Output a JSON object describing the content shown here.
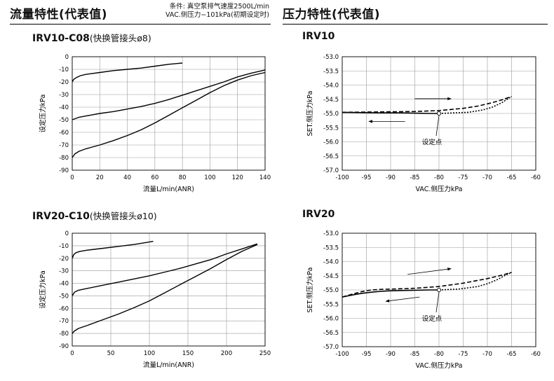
{
  "left_section": {
    "title": "流量特性(代表值)",
    "condition_line1": "条件: 真空泵排气速度2500L/min",
    "condition_line2": "VAC.侧压力−101kPa(初期设定时)"
  },
  "right_section": {
    "title": "压力特性(代表值)"
  },
  "chart_data": [
    {
      "id": "irv10-c08-flow",
      "type": "line",
      "model": "IRV10-C08",
      "model_note": "(快换管接头ø8)",
      "xlabel": "流量L/min(ANR)",
      "ylabel": "设定压力kPa",
      "xlim": [
        0,
        140
      ],
      "ylim": [
        -90,
        0
      ],
      "xticks": [
        0,
        20,
        40,
        60,
        80,
        100,
        120,
        140
      ],
      "yticks": [
        0,
        -10,
        -20,
        -30,
        -40,
        -50,
        -60,
        -70,
        -80,
        -90
      ],
      "grid": true,
      "series": [
        {
          "x": [
            0,
            1,
            3,
            6,
            10,
            20,
            30,
            40,
            50,
            60,
            70,
            80
          ],
          "y": [
            -20,
            -18,
            -16.5,
            -15,
            -14,
            -12.5,
            -11,
            -10,
            -9,
            -7.5,
            -6,
            -5
          ]
        },
        {
          "x": [
            0,
            5,
            10,
            20,
            30,
            40,
            50,
            60,
            70,
            80,
            90,
            100,
            110,
            120,
            130,
            140
          ],
          "y": [
            -50,
            -48,
            -47,
            -45,
            -43.5,
            -41.5,
            -39.5,
            -37,
            -34,
            -30.5,
            -27,
            -23.5,
            -20,
            -16,
            -13,
            -10.5
          ]
        },
        {
          "x": [
            0,
            2,
            5,
            10,
            20,
            30,
            40,
            50,
            60,
            70,
            80,
            90,
            100,
            110,
            120,
            130,
            140
          ],
          "y": [
            -80,
            -77,
            -75,
            -73,
            -70,
            -66.5,
            -62.5,
            -58,
            -52.5,
            -46.5,
            -40.5,
            -34.5,
            -28.5,
            -23,
            -18.5,
            -15,
            -12.5
          ]
        }
      ]
    },
    {
      "id": "irv20-c10-flow",
      "type": "line",
      "model": "IRV20-C10",
      "model_note": "(快换管接头ø10)",
      "xlabel": "流量L/min(ANR)",
      "ylabel": "设定压力kPa",
      "xlim": [
        0,
        250
      ],
      "ylim": [
        -90,
        0
      ],
      "xticks": [
        0,
        50,
        100,
        150,
        200,
        250
      ],
      "yticks": [
        0,
        -10,
        -20,
        -30,
        -40,
        -50,
        -60,
        -70,
        -80,
        -90
      ],
      "grid": true,
      "series": [
        {
          "x": [
            0,
            2,
            5,
            10,
            20,
            40,
            60,
            80,
            95,
            105
          ],
          "y": [
            -20,
            -17,
            -15.5,
            -14.5,
            -13.5,
            -12,
            -10.5,
            -9,
            -7.5,
            -6.5
          ]
        },
        {
          "x": [
            0,
            3,
            8,
            20,
            40,
            60,
            80,
            100,
            120,
            140,
            160,
            180,
            200,
            220,
            240
          ],
          "y": [
            -50,
            -47,
            -45.5,
            -44,
            -41.5,
            -39,
            -36.5,
            -34,
            -31,
            -28,
            -24.5,
            -21,
            -16.5,
            -12.5,
            -8.5
          ]
        },
        {
          "x": [
            0,
            3,
            8,
            20,
            40,
            60,
            80,
            100,
            120,
            140,
            160,
            180,
            200,
            220,
            240
          ],
          "y": [
            -80,
            -78,
            -76,
            -73.5,
            -69,
            -64.5,
            -59.5,
            -54,
            -47.5,
            -41,
            -34.5,
            -28,
            -21,
            -14.5,
            -9
          ]
        }
      ]
    },
    {
      "id": "irv10-pressure",
      "type": "line",
      "model": "IRV10",
      "xlabel": "VAC.侧压力kPa",
      "ylabel": "SET.侧压力kPa",
      "xlim": [
        -100,
        -60
      ],
      "ylim": [
        -57,
        -53
      ],
      "xticks": [
        -100,
        -95,
        -90,
        -85,
        -80,
        -75,
        -70,
        -65,
        -60
      ],
      "yticks": [
        -53.0,
        -53.5,
        -54.0,
        -54.5,
        -55.0,
        -55.5,
        -56.0,
        -56.5,
        -57.0
      ],
      "grid": true,
      "annotation": "设定点",
      "setpoint": {
        "x": -80,
        "y": -55.0
      },
      "series": [
        {
          "style": "solid",
          "x": [
            -100,
            -96,
            -92,
            -88,
            -85,
            -82,
            -80
          ],
          "y": [
            -54.96,
            -54.97,
            -54.98,
            -54.98,
            -54.99,
            -55.0,
            -55.0
          ]
        },
        {
          "style": "dashed",
          "x": [
            -100,
            -95,
            -90,
            -85,
            -80,
            -75,
            -72,
            -69,
            -67,
            -65
          ],
          "y": [
            -54.96,
            -54.95,
            -54.94,
            -54.93,
            -54.9,
            -54.82,
            -54.74,
            -54.62,
            -54.52,
            -54.4
          ]
        },
        {
          "style": "dotted",
          "x": [
            -80,
            -77,
            -74,
            -71,
            -69,
            -67,
            -65
          ],
          "y": [
            -55.0,
            -54.98,
            -54.96,
            -54.88,
            -54.78,
            -54.62,
            -54.4
          ]
        }
      ],
      "arrows": [
        {
          "direction": "right",
          "from": [
            -85,
            -54.48
          ],
          "to": [
            -77.5,
            -54.48
          ]
        },
        {
          "direction": "left",
          "from": [
            -87,
            -55.28
          ],
          "to": [
            -94.5,
            -55.28
          ]
        }
      ]
    },
    {
      "id": "irv20-pressure",
      "type": "line",
      "model": "IRV20",
      "xlabel": "VAC.侧压力kPa",
      "ylabel": "SET.侧压力kPa",
      "xlim": [
        -100,
        -60
      ],
      "ylim": [
        -57,
        -53
      ],
      "xticks": [
        -100,
        -95,
        -90,
        -85,
        -80,
        -75,
        -70,
        -65,
        -60
      ],
      "yticks": [
        -53.0,
        -53.5,
        -54.0,
        -54.5,
        -55.0,
        -55.5,
        -56.0,
        -56.5,
        -57.0
      ],
      "grid": true,
      "annotation": "设定点",
      "setpoint": {
        "x": -80,
        "y": -55.0
      },
      "series": [
        {
          "style": "solid",
          "x": [
            -100,
            -98,
            -96,
            -94,
            -92,
            -90,
            -88,
            -85,
            -82,
            -80
          ],
          "y": [
            -55.25,
            -55.18,
            -55.12,
            -55.08,
            -55.05,
            -55.03,
            -55.02,
            -55.01,
            -55.0,
            -55.0
          ]
        },
        {
          "style": "dashed",
          "x": [
            -100,
            -98,
            -96,
            -94,
            -92,
            -90,
            -85,
            -80,
            -75,
            -70,
            -67,
            -65
          ],
          "y": [
            -55.25,
            -55.15,
            -55.06,
            -55.0,
            -54.98,
            -54.97,
            -54.94,
            -54.88,
            -54.76,
            -54.6,
            -54.48,
            -54.38
          ]
        },
        {
          "style": "dotted",
          "x": [
            -80,
            -76,
            -72,
            -70,
            -68,
            -66.5,
            -65
          ],
          "y": [
            -55.0,
            -54.97,
            -54.88,
            -54.78,
            -54.64,
            -54.5,
            -54.38
          ]
        }
      ],
      "arrows": [
        {
          "direction": "right",
          "from": [
            -86.5,
            -54.45
          ],
          "to": [
            -77.5,
            -54.25
          ]
        },
        {
          "direction": "left",
          "from": [
            -84,
            -55.25
          ],
          "to": [
            -91,
            -55.4
          ]
        }
      ]
    }
  ]
}
